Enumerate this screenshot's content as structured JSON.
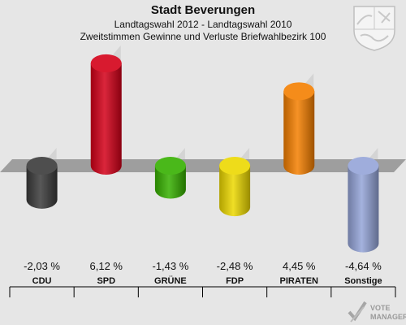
{
  "header": {
    "title": "Stadt Beverungen",
    "subtitle1": "Landtagswahl 2012 - Landtagswahl 2010",
    "subtitle2": "Zweitstimmen Gewinne und Verluste Briefwahlbezirk 100"
  },
  "branding": {
    "logo_line1": "VOTE",
    "logo_line2": "MANAGER",
    "crest_icon": "nrw-coat-of-arms-icon"
  },
  "chart_data": {
    "type": "bar",
    "categories": [
      "CDU",
      "SPD",
      "GRÜNE",
      "FDP",
      "PIRATEN",
      "Sonstige"
    ],
    "values": [
      -2.03,
      6.12,
      -1.43,
      -2.48,
      4.45,
      -4.64
    ],
    "value_labels": [
      "-2,03 %",
      "6,12 %",
      "-1,43 %",
      "-2,48 %",
      "4,45 %",
      "-4,64 %"
    ],
    "colors": [
      "#3a3a3a",
      "#d40018",
      "#36b000",
      "#ecd800",
      "#f47f00",
      "#94a4d8"
    ],
    "title": "Stadt Beverungen",
    "ylim": [
      -4.64,
      6.12
    ],
    "grid": false,
    "legend": "none"
  }
}
